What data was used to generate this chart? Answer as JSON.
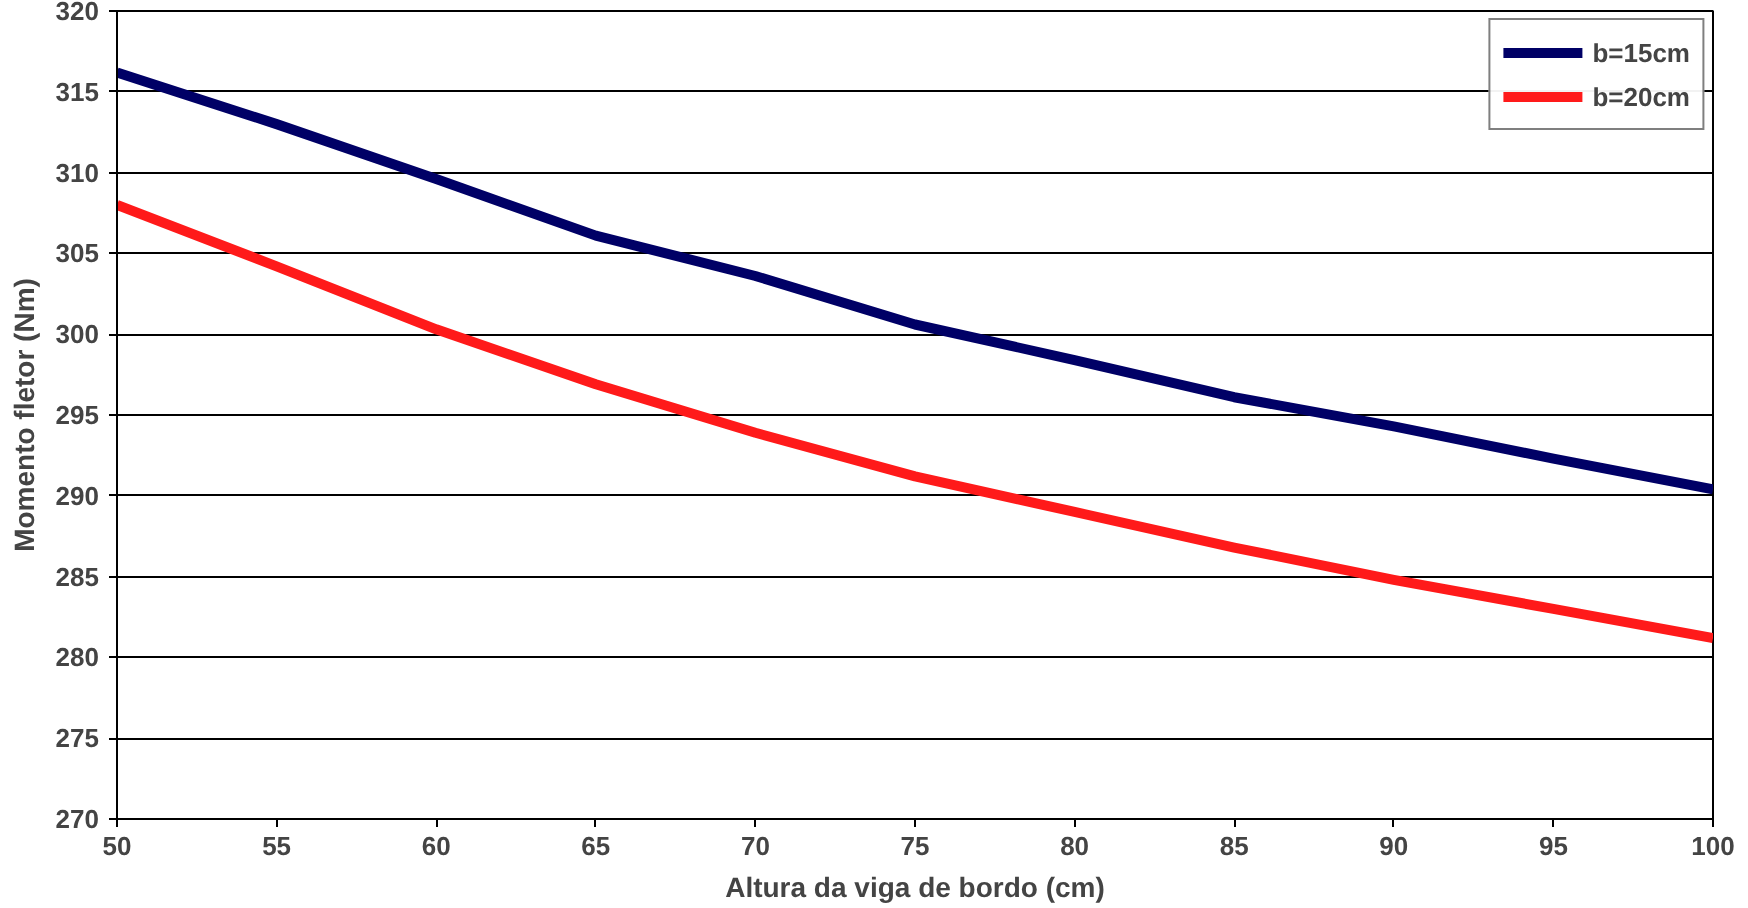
{
  "chart_data": {
    "type": "line",
    "xlabel": "Altura da viga de bordo (cm)",
    "ylabel": "Momento fletor (Nm)",
    "x": [
      50,
      55,
      60,
      65,
      70,
      75,
      80,
      85,
      90,
      95,
      100
    ],
    "series": [
      {
        "name": "b=15cm",
        "color": "#000066",
        "values": [
          316.2,
          313.0,
          309.6,
          306.1,
          303.6,
          300.6,
          298.4,
          296.1,
          294.3,
          292.3,
          290.4
        ]
      },
      {
        "name": "b=20cm",
        "color": "#ff1a1a",
        "values": [
          308.0,
          304.2,
          300.3,
          296.9,
          293.9,
          291.2,
          289.0,
          286.8,
          284.8,
          283.0,
          281.2
        ]
      }
    ],
    "xlim": [
      50,
      100
    ],
    "xticks": [
      50,
      55,
      60,
      65,
      70,
      75,
      80,
      85,
      90,
      95,
      100
    ],
    "ylim": [
      270,
      320
    ],
    "yticks": [
      270,
      275,
      280,
      285,
      290,
      295,
      300,
      305,
      310,
      315,
      320
    ],
    "grid": "y",
    "legend": "top right",
    "marker": "none",
    "line_style": "solid"
  }
}
